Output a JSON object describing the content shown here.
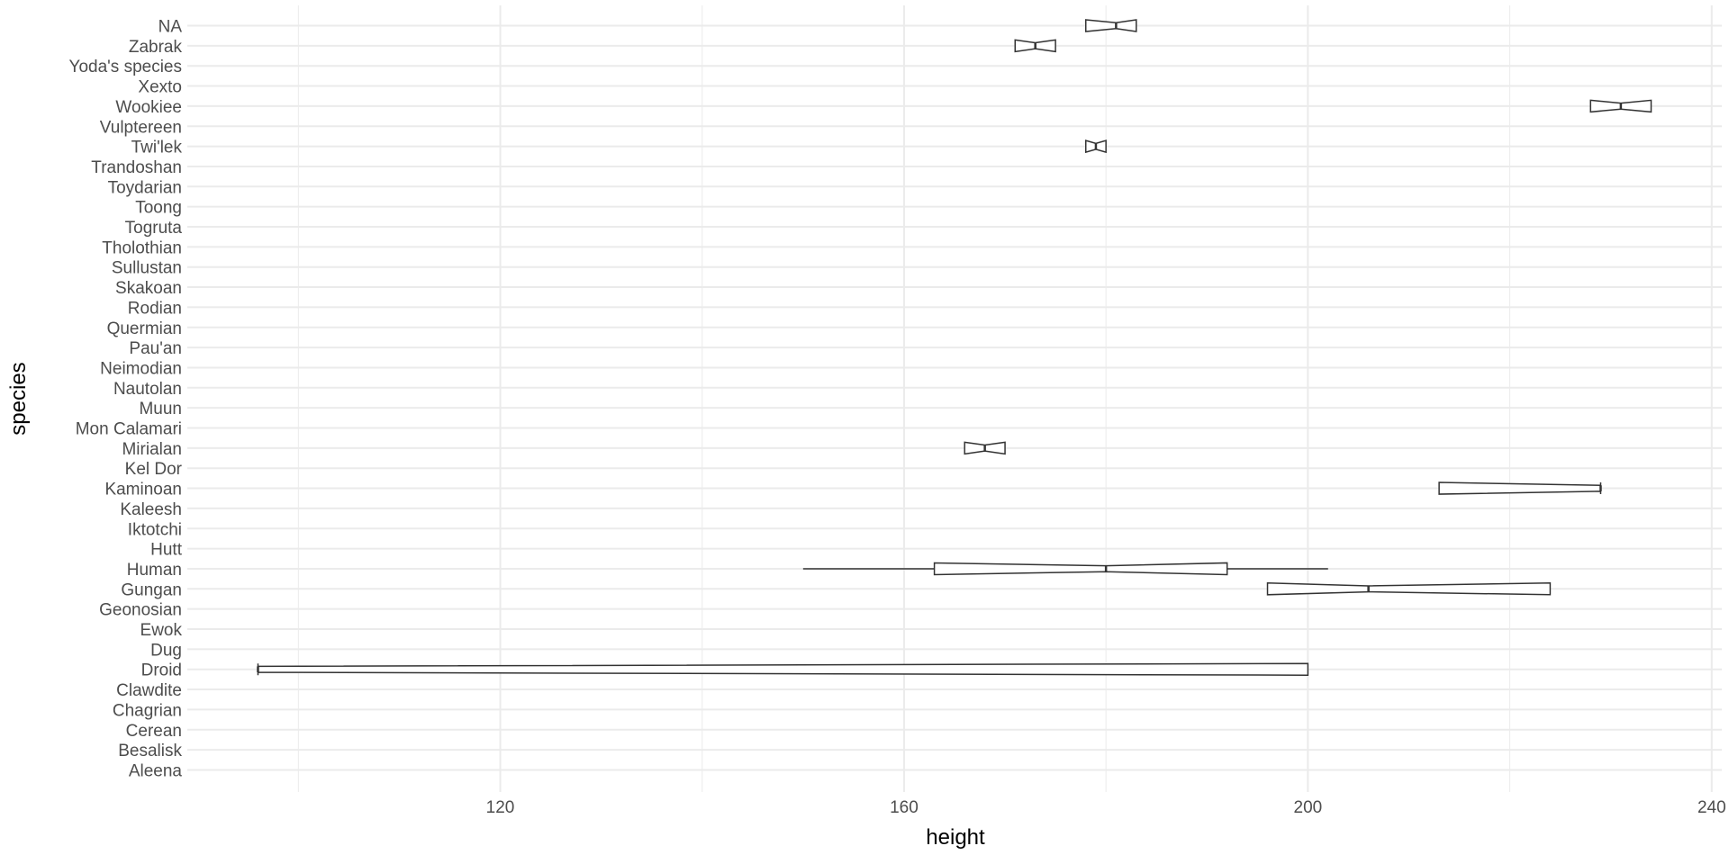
{
  "chart_data": {
    "type": "boxplot",
    "orientation": "horizontal",
    "notch": true,
    "xlabel": "height",
    "ylabel": "species",
    "xlim": [
      89,
      241
    ],
    "x_major_ticks": [
      120,
      160,
      200,
      240
    ],
    "x_minor_ticks": [
      100,
      140,
      180,
      220
    ],
    "grid": true,
    "theme": "minimal",
    "categories": [
      "Aleena",
      "Besalisk",
      "Cerean",
      "Chagrian",
      "Clawdite",
      "Droid",
      "Dug",
      "Ewok",
      "Geonosian",
      "Gungan",
      "Human",
      "Hutt",
      "Iktotchi",
      "Kaleesh",
      "Kaminoan",
      "Kel Dor",
      "Mirialan",
      "Mon Calamari",
      "Muun",
      "Nautolan",
      "Neimodian",
      "Pau'an",
      "Quermian",
      "Rodian",
      "Skakoan",
      "Sullustan",
      "Tholothian",
      "Togruta",
      "Toong",
      "Toydarian",
      "Trandoshan",
      "Twi'lek",
      "Vulptereen",
      "Wookiee",
      "Xexto",
      "Yoda's species",
      "Zabrak",
      "NA"
    ],
    "boxes": [
      {
        "category": "Droid",
        "min": 96,
        "q1": 96,
        "median": 96,
        "q3": 200,
        "max": 200
      },
      {
        "category": "Gungan",
        "min": 196,
        "q1": 196,
        "median": 206,
        "q3": 224,
        "max": 224
      },
      {
        "category": "Human",
        "min": 150,
        "q1": 163,
        "median": 180,
        "q3": 192,
        "max": 202
      },
      {
        "category": "Kaminoan",
        "min": 213,
        "q1": 213,
        "median": 229,
        "q3": 229,
        "max": 229
      },
      {
        "category": "Mirialan",
        "min": 166,
        "q1": 166,
        "median": 168,
        "q3": 170,
        "max": 170
      },
      {
        "category": "Twi'lek",
        "min": 178,
        "q1": 178,
        "median": 179,
        "q3": 180,
        "max": 180
      },
      {
        "category": "Wookiee",
        "min": 228,
        "q1": 228,
        "median": 231,
        "q3": 234,
        "max": 234
      },
      {
        "category": "Zabrak",
        "min": 171,
        "q1": 171,
        "median": 173,
        "q3": 175,
        "max": 175
      },
      {
        "category": "NA",
        "min": 178,
        "q1": 178,
        "median": 181,
        "q3": 183,
        "max": 183
      }
    ],
    "colors": {
      "grid": "#ebebeb",
      "box_line": "#333333",
      "box_fill": "#ffffff",
      "tick_text": "#4d4d4d",
      "title_text": "#000000"
    }
  }
}
